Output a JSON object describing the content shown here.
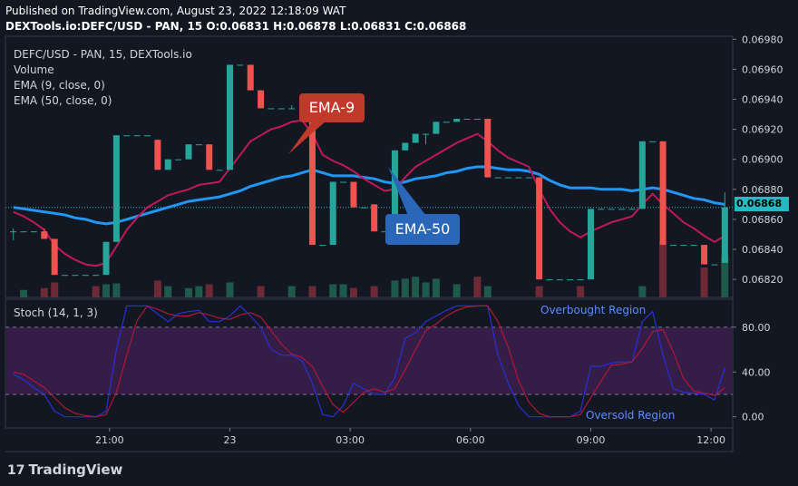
{
  "header": {
    "published": "Published on TradingView.com, August 23, 2022 12:18:09 WAT",
    "symbol_line": "DEXTools.io:DEFC/USD - PAN, 15  O:0.06831  H:0.06878  L:0.06831  C:0.06868"
  },
  "legend": {
    "title": "DEFC/USD - PAN, 15, DEXTools.io",
    "volume": "Volume",
    "ema9": "EMA (9, close, 0)",
    "ema50": "EMA (50, close, 0)",
    "stoch": "Stoch (14, 1, 3)"
  },
  "annotations": {
    "ema9": "EMA-9",
    "ema50": "EMA-50",
    "overbought": "Overbought Region",
    "oversold": "Oversold Region"
  },
  "footer": {
    "brand": "TradingView",
    "logo_text": "17"
  },
  "colors": {
    "up": "#26a69a",
    "down": "#ef5350",
    "ema9": "#c2185b",
    "ema50": "#2196f3",
    "stoch_k": "#2a2ed6",
    "stoch_d": "#b2163a",
    "stoch_band": "#3b1f4d"
  },
  "chart_data": [
    {
      "type": "candlestick",
      "title": "DEFC/USD - PAN, 15, DEXTools.io",
      "x_ticks": [
        "21:00",
        "23",
        "03:00",
        "06:00",
        "09:00",
        "12:00"
      ],
      "y_ticks": [
        "0.06820",
        "0.06840",
        "0.06860",
        "0.06880",
        "0.06900",
        "0.06920",
        "0.06940",
        "0.06960",
        "0.06980"
      ],
      "ylim": [
        0.06808,
        0.06982
      ],
      "last_price": "0.06868",
      "candles": [
        {
          "o": 0.06852,
          "h": 0.06854,
          "l": 0.06846,
          "c": 0.06852
        },
        {
          "o": 0.06852,
          "h": 0.06852,
          "l": 0.06852,
          "c": 0.06852
        },
        {
          "o": 0.06852,
          "h": 0.06852,
          "l": 0.06852,
          "c": 0.06852
        },
        {
          "o": 0.06852,
          "h": 0.06854,
          "l": 0.06847,
          "c": 0.06847
        },
        {
          "o": 0.06847,
          "h": 0.06847,
          "l": 0.06823,
          "c": 0.06823
        },
        {
          "o": 0.06823,
          "h": 0.06823,
          "l": 0.06823,
          "c": 0.06823
        },
        {
          "o": 0.06823,
          "h": 0.06823,
          "l": 0.06823,
          "c": 0.06823
        },
        {
          "o": 0.06823,
          "h": 0.06823,
          "l": 0.06823,
          "c": 0.06823
        },
        {
          "o": 0.06823,
          "h": 0.06823,
          "l": 0.06823,
          "c": 0.06823
        },
        {
          "o": 0.06823,
          "h": 0.06845,
          "l": 0.06823,
          "c": 0.06845
        },
        {
          "o": 0.06845,
          "h": 0.06916,
          "l": 0.06845,
          "c": 0.06916
        },
        {
          "o": 0.06916,
          "h": 0.06916,
          "l": 0.06916,
          "c": 0.06916
        },
        {
          "o": 0.06916,
          "h": 0.06916,
          "l": 0.06916,
          "c": 0.06916
        },
        {
          "o": 0.06916,
          "h": 0.06916,
          "l": 0.06916,
          "c": 0.06916
        },
        {
          "o": 0.06913,
          "h": 0.06913,
          "l": 0.06893,
          "c": 0.06893
        },
        {
          "o": 0.06893,
          "h": 0.069,
          "l": 0.06893,
          "c": 0.069
        },
        {
          "o": 0.069,
          "h": 0.069,
          "l": 0.069,
          "c": 0.069
        },
        {
          "o": 0.069,
          "h": 0.0691,
          "l": 0.069,
          "c": 0.0691
        },
        {
          "o": 0.0691,
          "h": 0.0691,
          "l": 0.0691,
          "c": 0.0691
        },
        {
          "o": 0.0691,
          "h": 0.0691,
          "l": 0.06893,
          "c": 0.06893
        },
        {
          "o": 0.06893,
          "h": 0.06893,
          "l": 0.06893,
          "c": 0.06893
        },
        {
          "o": 0.06893,
          "h": 0.06963,
          "l": 0.06893,
          "c": 0.06963
        },
        {
          "o": 0.06963,
          "h": 0.06963,
          "l": 0.06963,
          "c": 0.06963
        },
        {
          "o": 0.06963,
          "h": 0.06963,
          "l": 0.06946,
          "c": 0.06946
        },
        {
          "o": 0.06946,
          "h": 0.06946,
          "l": 0.06934,
          "c": 0.06934
        },
        {
          "o": 0.06934,
          "h": 0.06934,
          "l": 0.06934,
          "c": 0.06934
        },
        {
          "o": 0.06934,
          "h": 0.06934,
          "l": 0.06934,
          "c": 0.06934
        },
        {
          "o": 0.06934,
          "h": 0.06936,
          "l": 0.06934,
          "c": 0.06934
        },
        {
          "o": 0.06934,
          "h": 0.06934,
          "l": 0.06934,
          "c": 0.06934
        },
        {
          "o": 0.06934,
          "h": 0.06934,
          "l": 0.06843,
          "c": 0.06843
        },
        {
          "o": 0.06843,
          "h": 0.06843,
          "l": 0.06843,
          "c": 0.06843
        },
        {
          "o": 0.06843,
          "h": 0.06885,
          "l": 0.06843,
          "c": 0.06885
        },
        {
          "o": 0.06885,
          "h": 0.06885,
          "l": 0.06885,
          "c": 0.06885
        },
        {
          "o": 0.06885,
          "h": 0.06885,
          "l": 0.06868,
          "c": 0.06868
        },
        {
          "o": 0.06868,
          "h": 0.06868,
          "l": 0.06868,
          "c": 0.06868
        },
        {
          "o": 0.0687,
          "h": 0.0687,
          "l": 0.06852,
          "c": 0.06852
        },
        {
          "o": 0.06852,
          "h": 0.06852,
          "l": 0.06852,
          "c": 0.06852
        },
        {
          "o": 0.06852,
          "h": 0.06906,
          "l": 0.06852,
          "c": 0.06906
        },
        {
          "o": 0.06906,
          "h": 0.06911,
          "l": 0.06906,
          "c": 0.06911
        },
        {
          "o": 0.06911,
          "h": 0.06917,
          "l": 0.06911,
          "c": 0.06917
        },
        {
          "o": 0.06917,
          "h": 0.06917,
          "l": 0.0691,
          "c": 0.06917
        },
        {
          "o": 0.06917,
          "h": 0.06925,
          "l": 0.06917,
          "c": 0.06925
        },
        {
          "o": 0.06925,
          "h": 0.06925,
          "l": 0.06925,
          "c": 0.06925
        },
        {
          "o": 0.06925,
          "h": 0.06927,
          "l": 0.06925,
          "c": 0.06927
        },
        {
          "o": 0.06927,
          "h": 0.06927,
          "l": 0.06927,
          "c": 0.06927
        },
        {
          "o": 0.06927,
          "h": 0.06927,
          "l": 0.06927,
          "c": 0.06927
        },
        {
          "o": 0.06927,
          "h": 0.06927,
          "l": 0.06888,
          "c": 0.06888
        },
        {
          "o": 0.06888,
          "h": 0.06888,
          "l": 0.06888,
          "c": 0.06888
        },
        {
          "o": 0.06888,
          "h": 0.06888,
          "l": 0.06888,
          "c": 0.06888
        },
        {
          "o": 0.06888,
          "h": 0.06888,
          "l": 0.06888,
          "c": 0.06888
        },
        {
          "o": 0.06888,
          "h": 0.06888,
          "l": 0.06888,
          "c": 0.06888
        },
        {
          "o": 0.06888,
          "h": 0.06888,
          "l": 0.0682,
          "c": 0.0682
        },
        {
          "o": 0.0682,
          "h": 0.0682,
          "l": 0.0682,
          "c": 0.0682
        },
        {
          "o": 0.0682,
          "h": 0.0682,
          "l": 0.0682,
          "c": 0.0682
        },
        {
          "o": 0.0682,
          "h": 0.0682,
          "l": 0.0682,
          "c": 0.0682
        },
        {
          "o": 0.0682,
          "h": 0.0682,
          "l": 0.0682,
          "c": 0.0682
        },
        {
          "o": 0.0682,
          "h": 0.06867,
          "l": 0.0682,
          "c": 0.06867
        },
        {
          "o": 0.06867,
          "h": 0.06867,
          "l": 0.06867,
          "c": 0.06867
        },
        {
          "o": 0.06867,
          "h": 0.06867,
          "l": 0.06867,
          "c": 0.06867
        },
        {
          "o": 0.06867,
          "h": 0.06867,
          "l": 0.06867,
          "c": 0.06867
        },
        {
          "o": 0.06867,
          "h": 0.06867,
          "l": 0.06867,
          "c": 0.06867
        },
        {
          "o": 0.06867,
          "h": 0.06912,
          "l": 0.06867,
          "c": 0.06912
        },
        {
          "o": 0.06912,
          "h": 0.06912,
          "l": 0.06912,
          "c": 0.06912
        },
        {
          "o": 0.06912,
          "h": 0.06912,
          "l": 0.06843,
          "c": 0.06843
        },
        {
          "o": 0.06843,
          "h": 0.06843,
          "l": 0.06843,
          "c": 0.06843
        },
        {
          "o": 0.06843,
          "h": 0.06843,
          "l": 0.06843,
          "c": 0.06843
        },
        {
          "o": 0.06843,
          "h": 0.06843,
          "l": 0.06843,
          "c": 0.06843
        },
        {
          "o": 0.06843,
          "h": 0.06843,
          "l": 0.0683,
          "c": 0.0683
        },
        {
          "o": 0.0683,
          "h": 0.0683,
          "l": 0.0683,
          "c": 0.0683
        },
        {
          "o": 0.06831,
          "h": 0.06878,
          "l": 0.06831,
          "c": 0.06868
        }
      ],
      "ema9": [
        0.06865,
        0.06862,
        0.06858,
        0.06853,
        0.06843,
        0.06837,
        0.06833,
        0.0683,
        0.06829,
        0.06831,
        0.06842,
        0.06853,
        0.06861,
        0.06868,
        0.06872,
        0.06876,
        0.06878,
        0.0688,
        0.06883,
        0.06884,
        0.06885,
        0.06894,
        0.06903,
        0.06912,
        0.06916,
        0.0692,
        0.06922,
        0.06925,
        0.06926,
        0.06917,
        0.06903,
        0.06899,
        0.06896,
        0.06892,
        0.06887,
        0.06883,
        0.06879,
        0.0688,
        0.06888,
        0.06895,
        0.06899,
        0.06903,
        0.06907,
        0.06911,
        0.06914,
        0.06917,
        0.06912,
        0.06906,
        0.06901,
        0.06898,
        0.06895,
        0.0688,
        0.06867,
        0.06858,
        0.06852,
        0.06848,
        0.06852,
        0.06855,
        0.06858,
        0.0686,
        0.06862,
        0.0687,
        0.06877,
        0.0687,
        0.06864,
        0.06858,
        0.06854,
        0.06849,
        0.06845,
        0.06849
      ],
      "ema50": [
        0.06868,
        0.06867,
        0.06866,
        0.06865,
        0.06864,
        0.06863,
        0.06861,
        0.0686,
        0.06858,
        0.06857,
        0.06858,
        0.0686,
        0.06862,
        0.06864,
        0.06866,
        0.06868,
        0.0687,
        0.06872,
        0.06873,
        0.06874,
        0.06875,
        0.06877,
        0.06879,
        0.06882,
        0.06884,
        0.06886,
        0.06888,
        0.06889,
        0.06891,
        0.06893,
        0.06891,
        0.06889,
        0.06889,
        0.06889,
        0.06888,
        0.06887,
        0.06885,
        0.06884,
        0.06885,
        0.06887,
        0.06888,
        0.06889,
        0.06891,
        0.06892,
        0.06894,
        0.06895,
        0.06895,
        0.06894,
        0.06893,
        0.06893,
        0.06892,
        0.0689,
        0.06886,
        0.06883,
        0.06881,
        0.06881,
        0.06881,
        0.0688,
        0.0688,
        0.0688,
        0.06879,
        0.0688,
        0.06881,
        0.0688,
        0.06878,
        0.06876,
        0.06874,
        0.06873,
        0.06871,
        0.0687
      ],
      "volume": [
        0,
        8,
        0,
        10,
        16,
        0,
        0,
        0,
        12,
        14,
        15,
        0,
        0,
        0,
        18,
        12,
        0,
        10,
        12,
        14,
        0,
        16,
        0,
        0,
        12,
        0,
        0,
        12,
        0,
        12,
        0,
        14,
        14,
        10,
        0,
        12,
        0,
        18,
        20,
        22,
        16,
        20,
        0,
        14,
        0,
        22,
        12,
        0,
        0,
        0,
        0,
        12,
        0,
        0,
        0,
        12,
        0,
        0,
        0,
        0,
        0,
        12,
        0,
        60,
        0,
        0,
        0,
        32,
        0,
        45
      ],
      "volume_up": [
        true,
        true,
        false,
        false,
        false,
        false,
        false,
        false,
        false,
        true,
        true,
        false,
        false,
        false,
        false,
        true,
        false,
        true,
        true,
        false,
        false,
        true,
        false,
        false,
        false,
        false,
        false,
        true,
        false,
        false,
        false,
        true,
        true,
        false,
        false,
        false,
        false,
        true,
        true,
        true,
        true,
        true,
        false,
        true,
        false,
        false,
        true,
        false,
        false,
        false,
        false,
        false,
        false,
        false,
        false,
        false,
        false,
        false,
        false,
        false,
        false,
        true,
        false,
        false,
        false,
        false,
        false,
        false,
        false,
        true
      ]
    },
    {
      "type": "line",
      "title": "Stoch (14, 1, 3)",
      "y_ticks": [
        "0.00",
        "40.00",
        "80.00"
      ],
      "ylim": [
        -10,
        105
      ],
      "bands": [
        20,
        80
      ],
      "series": [
        {
          "values": [
            38,
            33,
            26,
            20,
            5,
            0,
            0,
            0,
            0,
            5,
            60,
            99,
            99,
            99,
            92,
            85,
            92,
            94,
            95,
            85,
            85,
            90,
            99,
            90,
            80,
            60,
            55,
            55,
            50,
            30,
            2,
            0,
            10,
            30,
            25,
            20,
            20,
            35,
            70,
            75,
            85,
            90,
            95,
            99,
            99,
            99,
            99,
            55,
            30,
            10,
            0,
            0,
            0,
            0,
            0,
            5,
            45,
            45,
            48,
            49,
            49,
            85,
            94,
            55,
            25,
            22,
            21,
            20,
            15,
            43
          ]
        },
        {
          "values": [
            40,
            38,
            32,
            26,
            17,
            8,
            3,
            1,
            0,
            2,
            22,
            55,
            86,
            99,
            96,
            92,
            90,
            90,
            93,
            91,
            88,
            87,
            91,
            93,
            89,
            77,
            65,
            56,
            53,
            45,
            27,
            11,
            4,
            13,
            22,
            25,
            22,
            25,
            42,
            60,
            77,
            83,
            90,
            95,
            98,
            99,
            99,
            85,
            62,
            32,
            13,
            3,
            0,
            0,
            0,
            2,
            17,
            32,
            46,
            47,
            49,
            61,
            76,
            78,
            58,
            34,
            23,
            21,
            19,
            26
          ]
        }
      ]
    }
  ]
}
